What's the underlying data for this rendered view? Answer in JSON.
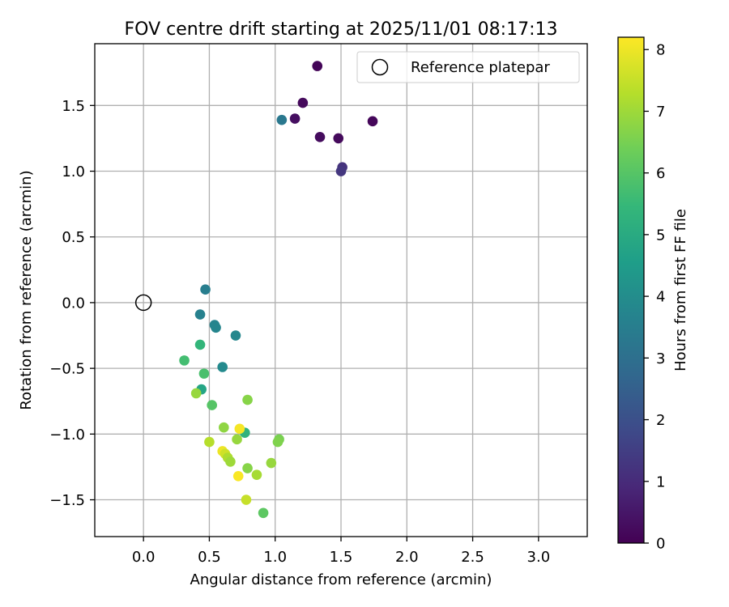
{
  "chart_data": {
    "type": "scatter",
    "title": "FOV centre drift starting at 2025/11/01 08:17:13",
    "xlabel": "Angular distance from reference (arcmin)",
    "ylabel": "Rotation from reference (arcmin)",
    "xlim": [
      -0.37,
      3.37
    ],
    "ylim": [
      -1.78,
      1.97
    ],
    "xticks": [
      0.0,
      0.5,
      1.0,
      1.5,
      2.0,
      2.5,
      3.0
    ],
    "xtick_labels": [
      "0.0",
      "0.5",
      "1.0",
      "1.5",
      "2.0",
      "2.5",
      "3.0"
    ],
    "yticks": [
      -1.5,
      -1.0,
      -0.5,
      0.0,
      0.5,
      1.0,
      1.5
    ],
    "ytick_labels": [
      "−1.5",
      "−1.0",
      "−0.5",
      "0.0",
      "0.5",
      "1.0",
      "1.5"
    ],
    "grid": true,
    "legend": {
      "position": "top-right",
      "entries": [
        "Reference platepar"
      ]
    },
    "reference_point": {
      "x": 0.0,
      "y": 0.0,
      "label": "Reference platepar"
    },
    "colorbar": {
      "label": "Hours from first FF file",
      "min": 0,
      "max": 8.2,
      "ticks": [
        0,
        1,
        2,
        3,
        4,
        5,
        6,
        7,
        8
      ],
      "tick_labels": [
        "0",
        "1",
        "2",
        "3",
        "4",
        "5",
        "6",
        "7",
        "8"
      ],
      "colormap": [
        "#440154",
        "#482878",
        "#3e4a89",
        "#31688e",
        "#26828e",
        "#1f9e89",
        "#35b779",
        "#6ece58",
        "#b5de2b",
        "#fde725"
      ]
    },
    "points": [
      {
        "x": 1.32,
        "y": 1.8,
        "hours": 0.1
      },
      {
        "x": 1.21,
        "y": 1.52,
        "hours": 0.2
      },
      {
        "x": 1.15,
        "y": 1.4,
        "hours": 0.3
      },
      {
        "x": 1.74,
        "y": 1.38,
        "hours": 0.15
      },
      {
        "x": 1.34,
        "y": 1.26,
        "hours": 0.25
      },
      {
        "x": 1.48,
        "y": 1.25,
        "hours": 0.2
      },
      {
        "x": 1.51,
        "y": 1.03,
        "hours": 1.2
      },
      {
        "x": 1.5,
        "y": 1.0,
        "hours": 1.3
      },
      {
        "x": 1.05,
        "y": 1.39,
        "hours": 3.3
      },
      {
        "x": 0.47,
        "y": 0.1,
        "hours": 3.5
      },
      {
        "x": 0.43,
        "y": -0.09,
        "hours": 3.6
      },
      {
        "x": 0.54,
        "y": -0.17,
        "hours": 3.7
      },
      {
        "x": 0.55,
        "y": -0.19,
        "hours": 3.75
      },
      {
        "x": 0.7,
        "y": -0.25,
        "hours": 3.8
      },
      {
        "x": 0.6,
        "y": -0.49,
        "hours": 3.9
      },
      {
        "x": 0.43,
        "y": -0.32,
        "hours": 5.4
      },
      {
        "x": 0.31,
        "y": -0.44,
        "hours": 5.7
      },
      {
        "x": 0.46,
        "y": -0.54,
        "hours": 5.8
      },
      {
        "x": 0.44,
        "y": -0.66,
        "hours": 4.8
      },
      {
        "x": 0.4,
        "y": -0.69,
        "hours": 6.9
      },
      {
        "x": 0.52,
        "y": -0.78,
        "hours": 6.0
      },
      {
        "x": 0.79,
        "y": -0.74,
        "hours": 6.7
      },
      {
        "x": 0.61,
        "y": -0.95,
        "hours": 6.8
      },
      {
        "x": 0.77,
        "y": -0.99,
        "hours": 5.3
      },
      {
        "x": 0.73,
        "y": -0.96,
        "hours": 8.1
      },
      {
        "x": 0.71,
        "y": -1.04,
        "hours": 6.9
      },
      {
        "x": 0.5,
        "y": -1.06,
        "hours": 7.3
      },
      {
        "x": 1.03,
        "y": -1.04,
        "hours": 6.5
      },
      {
        "x": 1.02,
        "y": -1.06,
        "hours": 6.6
      },
      {
        "x": 0.6,
        "y": -1.13,
        "hours": 8.0
      },
      {
        "x": 0.62,
        "y": -1.15,
        "hours": 7.6
      },
      {
        "x": 0.64,
        "y": -1.18,
        "hours": 7.2
      },
      {
        "x": 0.66,
        "y": -1.21,
        "hours": 7.0
      },
      {
        "x": 0.97,
        "y": -1.22,
        "hours": 6.9
      },
      {
        "x": 0.79,
        "y": -1.26,
        "hours": 6.7
      },
      {
        "x": 0.86,
        "y": -1.31,
        "hours": 7.1
      },
      {
        "x": 0.72,
        "y": -1.32,
        "hours": 8.15
      },
      {
        "x": 0.78,
        "y": -1.5,
        "hours": 7.5
      },
      {
        "x": 0.91,
        "y": -1.6,
        "hours": 6.1
      }
    ]
  }
}
